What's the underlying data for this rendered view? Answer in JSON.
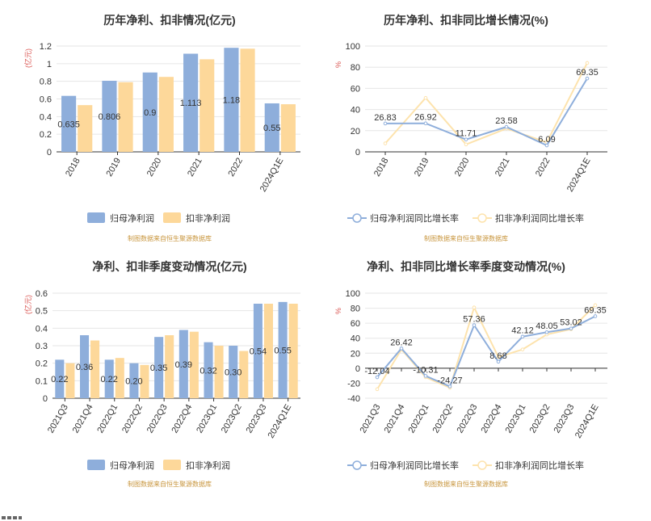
{
  "chart_data": [
    {
      "type": "bar",
      "title": "历年净利、扣非情况(亿元)",
      "unit_label": "(亿元)",
      "categories": [
        "2018",
        "2019",
        "2020",
        "2021",
        "2022",
        "2024Q1E"
      ],
      "series": [
        {
          "name": "归母净利润",
          "values": [
            0.635,
            0.806,
            0.9,
            1.113,
            1.18,
            0.55
          ],
          "labels": [
            "0.635",
            "0.806",
            "0.9",
            "1.113",
            "1.18",
            "0.55"
          ]
        },
        {
          "name": "扣非净利润",
          "values": [
            0.53,
            0.79,
            0.85,
            1.05,
            1.17,
            0.54
          ]
        }
      ],
      "ylim": [
        0,
        1.2
      ],
      "yticks": [
        "0",
        "0.2",
        "0.4",
        "0.6",
        "0.8",
        "1",
        "1.2"
      ],
      "grid": true,
      "legend_position": "bottom",
      "source": "制图数据来自恒生聚源数据库"
    },
    {
      "type": "line",
      "title": "历年净利、扣非同比增长情况(%)",
      "unit_label": "%",
      "categories": [
        "2018",
        "2019",
        "2020",
        "2021",
        "2022",
        "2024Q1E"
      ],
      "series": [
        {
          "name": "归母净利润同比增长率",
          "values": [
            26.83,
            26.92,
            11.71,
            23.58,
            6.09,
            69.35
          ],
          "labels": [
            "26.83",
            "26.92",
            "11.71",
            "23.58",
            "6.09",
            "69.35"
          ]
        },
        {
          "name": "扣非净利润同比增长率",
          "values": [
            8,
            51,
            7,
            22,
            9,
            84
          ]
        }
      ],
      "ylim": [
        0,
        100
      ],
      "yticks": [
        "0",
        "20",
        "40",
        "60",
        "80",
        "100"
      ],
      "grid": true,
      "legend_position": "bottom",
      "source": "制图数据来自恒生聚源数据库"
    },
    {
      "type": "bar",
      "title": "净利、扣非季度变动情况(亿元)",
      "unit_label": "(亿元)",
      "categories": [
        "2021Q3",
        "2021Q4",
        "2022Q1",
        "2022Q2",
        "2022Q3",
        "2022Q4",
        "2023Q1",
        "2023Q2",
        "2023Q3",
        "2024Q1E"
      ],
      "series": [
        {
          "name": "归母净利润",
          "values": [
            0.22,
            0.36,
            0.22,
            0.2,
            0.35,
            0.39,
            0.32,
            0.3,
            0.54,
            0.55
          ],
          "labels": [
            "0.22",
            "0.36",
            "0.22",
            "0.20",
            "0.35",
            "0.39",
            "0.32",
            "0.30",
            "0.54",
            "0.55"
          ]
        },
        {
          "name": "扣非净利润",
          "values": [
            0.2,
            0.33,
            0.23,
            0.19,
            0.36,
            0.38,
            0.3,
            0.27,
            0.54,
            0.54
          ]
        }
      ],
      "ylim": [
        0,
        0.6
      ],
      "yticks": [
        "0",
        "0.1",
        "0.2",
        "0.3",
        "0.4",
        "0.5",
        "0.6"
      ],
      "grid": true,
      "legend_position": "bottom",
      "source": "制图数据来自恒生聚源数据库"
    },
    {
      "type": "line",
      "title": "净利、扣非同比增长率季度变动情况(%)",
      "unit_label": "%",
      "categories": [
        "2021Q3",
        "2021Q4",
        "2022Q1",
        "2022Q2",
        "2022Q3",
        "2022Q4",
        "2023Q1",
        "2023Q2",
        "2023Q3",
        "2024Q1E"
      ],
      "series": [
        {
          "name": "归母净利润同比增长率",
          "values": [
            -12.04,
            26.42,
            -10.31,
            -24.27,
            57.36,
            8.68,
            42.12,
            48.05,
            53.02,
            69.35
          ],
          "labels": [
            "-12.04",
            "26.42",
            "-10.31",
            "-24.27",
            "57.36",
            "8.68",
            "42.12",
            "48.05",
            "53.02",
            "69.35"
          ]
        },
        {
          "name": "扣非净利润同比增长率",
          "values": [
            -28,
            25,
            -12,
            -26,
            81,
            15,
            25,
            45,
            52,
            84
          ]
        }
      ],
      "ylim": [
        -40,
        100
      ],
      "yticks": [
        "-40",
        "-20",
        "0",
        "20",
        "40",
        "60",
        "80",
        "100"
      ],
      "grid": true,
      "legend_position": "bottom",
      "source": "制图数据来自恒生聚源数据库"
    }
  ],
  "colors": {
    "series1_bar": "#8eaedb",
    "series2_bar": "#fdd89a",
    "series1_line": "#8eaedb",
    "series2_line": "#fde3ad",
    "grid": "#e6e6e6",
    "axis": "#333333",
    "unit": "#d9534f",
    "source": "#c8963e"
  }
}
